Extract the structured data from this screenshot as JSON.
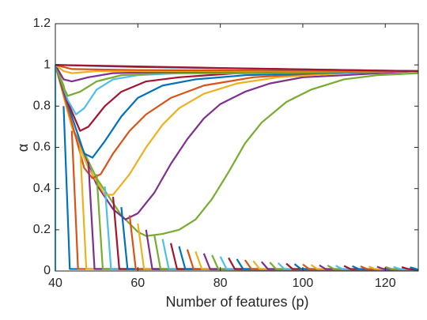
{
  "chart_data": {
    "type": "line",
    "xlabel": "Number of features (p)",
    "ylabel": "α",
    "xlim": [
      40,
      128
    ],
    "ylim": [
      0,
      1.2
    ],
    "xticks": [
      40,
      60,
      80,
      100,
      120
    ],
    "yticks": [
      0,
      0.2,
      0.4,
      0.6,
      0.8,
      1,
      1.2
    ],
    "series": [
      {
        "color": "#77AC30",
        "x": [
          40,
          42,
          44,
          50,
          56,
          60,
          62,
          66,
          70,
          74,
          78,
          82,
          86,
          90,
          96,
          102,
          110,
          118,
          128
        ],
        "values": [
          1,
          0.9,
          0.7,
          0.45,
          0.27,
          0.19,
          0.17,
          0.18,
          0.2,
          0.25,
          0.35,
          0.48,
          0.62,
          0.72,
          0.82,
          0.88,
          0.93,
          0.95,
          0.96
        ]
      },
      {
        "color": "#7E2F8E",
        "x": [
          40,
          44,
          50,
          54,
          57,
          60,
          64,
          68,
          72,
          76,
          80,
          86,
          92,
          100,
          110,
          128
        ],
        "values": [
          1,
          0.7,
          0.42,
          0.3,
          0.25,
          0.28,
          0.38,
          0.52,
          0.64,
          0.74,
          0.81,
          0.87,
          0.91,
          0.94,
          0.95,
          0.97
        ]
      },
      {
        "color": "#EDB120",
        "x": [
          40,
          44,
          48,
          52,
          54,
          58,
          62,
          66,
          70,
          76,
          84,
          94,
          110,
          128
        ],
        "values": [
          1,
          0.7,
          0.5,
          0.37,
          0.37,
          0.47,
          0.6,
          0.71,
          0.79,
          0.86,
          0.91,
          0.94,
          0.96,
          0.97
        ]
      },
      {
        "color": "#D95319",
        "x": [
          40,
          44,
          47,
          49,
          51,
          54,
          58,
          62,
          68,
          76,
          88,
          104,
          128
        ],
        "values": [
          1,
          0.72,
          0.5,
          0.45,
          0.47,
          0.57,
          0.68,
          0.76,
          0.84,
          0.9,
          0.94,
          0.96,
          0.97
        ]
      },
      {
        "color": "#0072BD",
        "x": [
          40,
          44,
          47,
          49,
          52,
          56,
          60,
          66,
          74,
          86,
          104,
          128
        ],
        "values": [
          1,
          0.75,
          0.57,
          0.55,
          0.63,
          0.75,
          0.84,
          0.9,
          0.93,
          0.95,
          0.96,
          0.97
        ]
      },
      {
        "color": "#A2142F",
        "x": [
          40,
          43,
          46,
          48,
          52,
          56,
          62,
          70,
          84,
          104,
          128
        ],
        "values": [
          1,
          0.82,
          0.68,
          0.7,
          0.8,
          0.87,
          0.92,
          0.94,
          0.96,
          0.965,
          0.97
        ]
      },
      {
        "color": "#4DBEEE",
        "x": [
          40,
          43,
          45,
          47,
          50,
          54,
          60,
          70,
          90,
          128
        ],
        "values": [
          1,
          0.83,
          0.76,
          0.79,
          0.88,
          0.93,
          0.95,
          0.96,
          0.96,
          0.97
        ]
      },
      {
        "color": "#77AC30",
        "x": [
          40,
          42,
          43,
          46,
          50,
          56,
          66,
          90,
          128
        ],
        "values": [
          1,
          0.89,
          0.85,
          0.87,
          0.92,
          0.95,
          0.96,
          0.96,
          0.97
        ]
      },
      {
        "color": "#7E2F8E",
        "x": [
          40,
          42,
          44,
          48,
          54,
          64,
          90,
          128
        ],
        "values": [
          1,
          0.93,
          0.92,
          0.94,
          0.96,
          0.965,
          0.97,
          0.97
        ]
      },
      {
        "color": "#EDB120",
        "x": [
          40,
          42,
          44,
          50,
          60,
          128
        ],
        "values": [
          1,
          0.97,
          0.96,
          0.97,
          0.97,
          0.97
        ]
      },
      {
        "color": "#D95319",
        "x": [
          40,
          44,
          60,
          128
        ],
        "values": [
          1,
          0.98,
          0.975,
          0.97
        ]
      },
      {
        "color": "#0072BD",
        "x": [
          40,
          60,
          128
        ],
        "values": [
          1,
          0.99,
          0.97
        ]
      },
      {
        "color": "#A2142F",
        "x": [
          40,
          80,
          128
        ],
        "values": [
          1,
          0.985,
          0.97
        ]
      },
      {
        "color": "#4DBEEE",
        "x": [
          40,
          40
        ],
        "values": [
          0,
          1
        ]
      },
      {
        "color": "#0072BD",
        "x": [
          42,
          43.5,
          128
        ],
        "values": [
          0.8,
          0.01,
          0.005
        ]
      },
      {
        "color": "#D95319",
        "x": [
          44,
          45.5,
          128
        ],
        "values": [
          0.68,
          0.01,
          0.005
        ]
      },
      {
        "color": "#EDB120",
        "x": [
          46,
          47.5,
          128
        ],
        "values": [
          0.6,
          0.01,
          0.005
        ]
      },
      {
        "color": "#7E2F8E",
        "x": [
          48,
          49.5,
          128
        ],
        "values": [
          0.53,
          0.01,
          0.005
        ]
      },
      {
        "color": "#77AC30",
        "x": [
          50,
          51.5,
          128
        ],
        "values": [
          0.47,
          0.01,
          0.005
        ]
      },
      {
        "color": "#4DBEEE",
        "x": [
          52,
          53.5,
          128
        ],
        "values": [
          0.41,
          0.01,
          0.005
        ]
      },
      {
        "color": "#A2142F",
        "x": [
          54,
          55.5,
          128
        ],
        "values": [
          0.36,
          0.01,
          0.005
        ]
      },
      {
        "color": "#0072BD",
        "x": [
          56,
          57.5,
          128
        ],
        "values": [
          0.31,
          0.01,
          0.005
        ]
      },
      {
        "color": "#D95319",
        "x": [
          58,
          59.5,
          128
        ],
        "values": [
          0.27,
          0.01,
          0.005
        ]
      },
      {
        "color": "#EDB120",
        "x": [
          60,
          61.5,
          128
        ],
        "values": [
          0.23,
          0.01,
          0.005
        ]
      },
      {
        "color": "#7E2F8E",
        "x": [
          62,
          63.5,
          128
        ],
        "values": [
          0.2,
          0.01,
          0.005
        ]
      },
      {
        "color": "#77AC30",
        "x": [
          64,
          65.5,
          128
        ],
        "values": [
          0.175,
          0.01,
          0.005
        ]
      },
      {
        "color": "#4DBEEE",
        "x": [
          66,
          67.5,
          128
        ],
        "values": [
          0.155,
          0.01,
          0.005
        ]
      },
      {
        "color": "#A2142F",
        "x": [
          68,
          69.5,
          128
        ],
        "values": [
          0.135,
          0.01,
          0.005
        ]
      },
      {
        "color": "#0072BD",
        "x": [
          70,
          71.5,
          128
        ],
        "values": [
          0.12,
          0.01,
          0.005
        ]
      },
      {
        "color": "#D95319",
        "x": [
          72,
          73.5,
          128
        ],
        "values": [
          0.105,
          0.01,
          0.005
        ]
      },
      {
        "color": "#EDB120",
        "x": [
          74,
          75.5,
          128
        ],
        "values": [
          0.095,
          0.01,
          0.005
        ]
      },
      {
        "color": "#7E2F8E",
        "x": [
          76,
          77.5,
          128
        ],
        "values": [
          0.085,
          0.01,
          0.005
        ]
      },
      {
        "color": "#77AC30",
        "x": [
          78,
          79.5,
          128
        ],
        "values": [
          0.077,
          0.01,
          0.005
        ]
      },
      {
        "color": "#4DBEEE",
        "x": [
          80,
          81.5,
          128
        ],
        "values": [
          0.07,
          0.01,
          0.005
        ]
      },
      {
        "color": "#A2142F",
        "x": [
          82,
          83.5,
          128
        ],
        "values": [
          0.064,
          0.01,
          0.005
        ]
      },
      {
        "color": "#0072BD",
        "x": [
          84,
          85.5,
          128
        ],
        "values": [
          0.058,
          0.01,
          0.005
        ]
      },
      {
        "color": "#D95319",
        "x": [
          86,
          87.5,
          128
        ],
        "values": [
          0.053,
          0.01,
          0.005
        ]
      },
      {
        "color": "#EDB120",
        "x": [
          88,
          89.5,
          128
        ],
        "values": [
          0.049,
          0.01,
          0.005
        ]
      },
      {
        "color": "#7E2F8E",
        "x": [
          90,
          91.5,
          128
        ],
        "values": [
          0.045,
          0.01,
          0.005
        ]
      },
      {
        "color": "#77AC30",
        "x": [
          92,
          93.5,
          128
        ],
        "values": [
          0.042,
          0.01,
          0.005
        ]
      },
      {
        "color": "#4DBEEE",
        "x": [
          94,
          95.5,
          128
        ],
        "values": [
          0.039,
          0.01,
          0.005
        ]
      },
      {
        "color": "#A2142F",
        "x": [
          96,
          97.5,
          128
        ],
        "values": [
          0.036,
          0.01,
          0.005
        ]
      },
      {
        "color": "#0072BD",
        "x": [
          98,
          99.5,
          128
        ],
        "values": [
          0.034,
          0.01,
          0.005
        ]
      },
      {
        "color": "#D95319",
        "x": [
          100,
          101.5,
          128
        ],
        "values": [
          0.032,
          0.01,
          0.005
        ]
      },
      {
        "color": "#EDB120",
        "x": [
          102,
          103.5,
          128
        ],
        "values": [
          0.03,
          0.01,
          0.005
        ]
      },
      {
        "color": "#7E2F8E",
        "x": [
          104,
          105.5,
          128
        ],
        "values": [
          0.028,
          0.01,
          0.005
        ]
      },
      {
        "color": "#77AC30",
        "x": [
          106,
          107.5,
          128
        ],
        "values": [
          0.027,
          0.01,
          0.005
        ]
      },
      {
        "color": "#4DBEEE",
        "x": [
          108,
          109.5,
          128
        ],
        "values": [
          0.026,
          0.01,
          0.005
        ]
      },
      {
        "color": "#A2142F",
        "x": [
          110,
          111.5,
          128
        ],
        "values": [
          0.025,
          0.01,
          0.005
        ]
      },
      {
        "color": "#0072BD",
        "x": [
          112,
          113.5,
          128
        ],
        "values": [
          0.024,
          0.01,
          0.005
        ]
      },
      {
        "color": "#D95319",
        "x": [
          114,
          115.5,
          128
        ],
        "values": [
          0.023,
          0.01,
          0.005
        ]
      },
      {
        "color": "#EDB120",
        "x": [
          116,
          117.5,
          128
        ],
        "values": [
          0.022,
          0.01,
          0.005
        ]
      },
      {
        "color": "#7E2F8E",
        "x": [
          118,
          119.5,
          128
        ],
        "values": [
          0.021,
          0.01,
          0.005
        ]
      },
      {
        "color": "#77AC30",
        "x": [
          120,
          121.5,
          128
        ],
        "values": [
          0.02,
          0.01,
          0.005
        ]
      },
      {
        "color": "#4DBEEE",
        "x": [
          122,
          123.5,
          128
        ],
        "values": [
          0.02,
          0.01,
          0.005
        ]
      },
      {
        "color": "#A2142F",
        "x": [
          124,
          125.5,
          128
        ],
        "values": [
          0.019,
          0.01,
          0.005
        ]
      },
      {
        "color": "#0072BD",
        "x": [
          126,
          127.5,
          128
        ],
        "values": [
          0.018,
          0.01,
          0.005
        ]
      }
    ]
  }
}
